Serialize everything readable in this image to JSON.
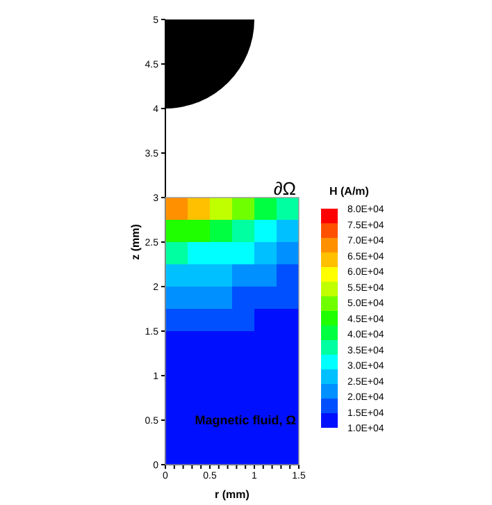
{
  "chart_data": {
    "type": "heatmap",
    "xlabel": "r (mm)",
    "ylabel": "z (mm)",
    "clabel": "H (A/m)",
    "x": [
      0.125,
      0.375,
      0.625,
      0.875,
      1.125,
      1.375
    ],
    "y": [
      2.875,
      2.625,
      2.375,
      2.125,
      1.875,
      1.625,
      1.375,
      1.125,
      0.875,
      0.625,
      0.375,
      0.125
    ],
    "cells": [
      [
        66000,
        62000,
        56000,
        49000,
        41000,
        35000
      ],
      [
        47000,
        45000,
        41000,
        37000,
        32000,
        28000
      ],
      [
        35000,
        33000,
        31000,
        29000,
        26000,
        23000
      ],
      [
        26000,
        26000,
        24000,
        23000,
        21000,
        19000
      ],
      [
        21000,
        20000,
        20000,
        18000,
        17000,
        16000
      ],
      [
        17000,
        16000,
        16000,
        15000,
        14000,
        13000
      ],
      [
        14000,
        13000,
        13000,
        13000,
        12000,
        11000
      ],
      [
        11000,
        11000,
        11000,
        10000,
        10000,
        9000
      ],
      [
        9500,
        9500,
        9000,
        9000,
        8500,
        8000
      ],
      [
        8500,
        8000,
        8000,
        8000,
        7500,
        7000
      ],
      [
        7500,
        7500,
        7000,
        7000,
        7000,
        6500
      ],
      [
        6500,
        6500,
        6500,
        6000,
        6000,
        6000
      ]
    ],
    "colors": [
      "#0010ff",
      "#0050ff",
      "#0090ff",
      "#00c0ff",
      "#00ffff",
      "#00ffa0",
      "#00ff40",
      "#20ff00",
      "#70ff00",
      "#c0ff00",
      "#ffff00",
      "#ffc000",
      "#ff9000",
      "#ff5000",
      "#ff0000"
    ],
    "clim": [
      10000,
      80000
    ],
    "cticks": [
      {
        "value": 10000,
        "label": "1.0E+04"
      },
      {
        "value": 15000,
        "label": "1.5E+04"
      },
      {
        "value": 20000,
        "label": "2.0E+04"
      },
      {
        "value": 25000,
        "label": "2.5E+04"
      },
      {
        "value": 30000,
        "label": "3.0E+04"
      },
      {
        "value": 35000,
        "label": "3.5E+04"
      },
      {
        "value": 40000,
        "label": "4.0E+04"
      },
      {
        "value": 45000,
        "label": "4.5E+04"
      },
      {
        "value": 50000,
        "label": "5.0E+04"
      },
      {
        "value": 55000,
        "label": "5.5E+04"
      },
      {
        "value": 60000,
        "label": "6.0E+04"
      },
      {
        "value": 65000,
        "label": "6.5E+04"
      },
      {
        "value": 70000,
        "label": "7.0E+04"
      },
      {
        "value": 75000,
        "label": "7.5E+04"
      },
      {
        "value": 80000,
        "label": "8.0E+04"
      }
    ],
    "xlim": [
      0,
      1.5
    ],
    "xticks": [
      0,
      {
        "value": 0.1,
        "label": null
      },
      {
        "value": 0.2,
        "label": null
      },
      {
        "value": 0.3,
        "label": null
      },
      {
        "value": 0.4,
        "label": null
      },
      0.5,
      {
        "value": 0.6,
        "label": null
      },
      {
        "value": 0.7,
        "label": null
      },
      {
        "value": 0.8,
        "label": null
      },
      {
        "value": 0.9,
        "label": null
      },
      1,
      {
        "value": 1.1,
        "label": null
      },
      {
        "value": 1.2,
        "label": null
      },
      {
        "value": 1.3,
        "label": null
      },
      {
        "value": 1.4,
        "label": null
      },
      1.5
    ],
    "ylim": [
      0,
      5
    ],
    "yticks": [
      0,
      0.5,
      1,
      1.5,
      2,
      2.5,
      3,
      3.5,
      4,
      4.5,
      5
    ],
    "annotations": [
      "∂Ω",
      "Magnetic fluid, Ω"
    ],
    "grid": false
  }
}
